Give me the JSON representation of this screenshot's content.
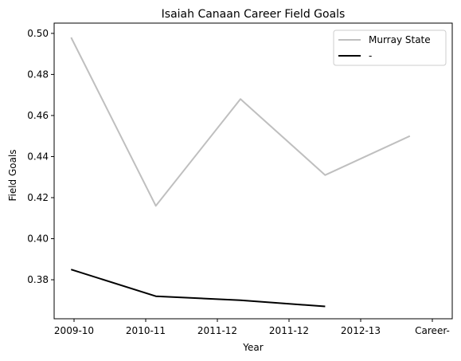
{
  "chart_data": {
    "type": "line",
    "title": "Isaiah Canaan Career Field Goals",
    "xlabel": "Year",
    "ylabel": "Field Goals",
    "x_ticks": [
      "2009-10",
      "2010-11",
      "2011-12",
      "2011-12",
      "2012-13",
      "Career-"
    ],
    "x_range": [
      -0.2,
      4.5
    ],
    "ylim": [
      0.361,
      0.505
    ],
    "y_ticks": [
      0.38,
      0.4,
      0.42,
      0.44,
      0.46,
      0.48,
      0.5
    ],
    "y_tick_labels": [
      "0.38",
      "0.40",
      "0.42",
      "0.44",
      "0.46",
      "0.48",
      "0.50"
    ],
    "grid": false,
    "legend_position": "top-right",
    "series": [
      {
        "name": "Murray State",
        "color": "#bfbfbf",
        "x": [
          0,
          1,
          2,
          3,
          4
        ],
        "y": [
          0.498,
          0.416,
          0.468,
          0.431,
          0.45
        ]
      },
      {
        "name": "-",
        "color": "#000000",
        "x": [
          0,
          1,
          2,
          3
        ],
        "y": [
          0.385,
          0.372,
          0.37,
          0.367
        ]
      }
    ]
  }
}
